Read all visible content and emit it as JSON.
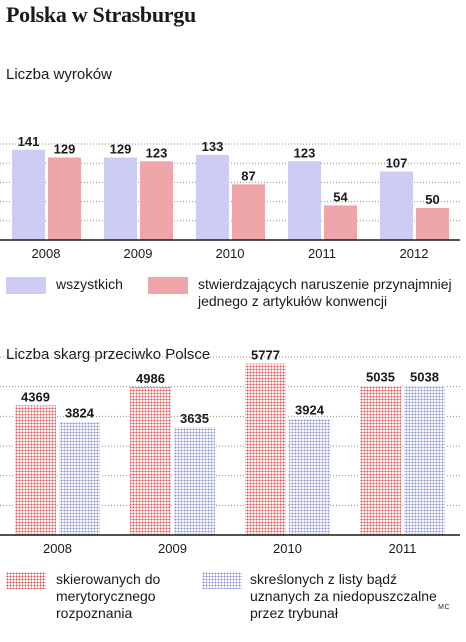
{
  "title": "Polska w Strasburgu",
  "credit": "MC",
  "colors": {
    "all_bars": "#cdcdf4",
    "violation_bars": "#efa6ab",
    "submitted_dots": "#e24b4b",
    "rejected_dots": "#8a8fd6",
    "grid": "#8f8f8f"
  },
  "chart_data": [
    {
      "type": "bar",
      "title": "Liczba wyroków",
      "categories": [
        "2008",
        "2009",
        "2010",
        "2011",
        "2012"
      ],
      "series": [
        {
          "name": "wszystkich",
          "values": [
            141,
            129,
            133,
            123,
            107
          ]
        },
        {
          "name": "stwierdzających naruszenie przynajmniej jednego z artykułów konwencji",
          "values": [
            129,
            123,
            87,
            54,
            50
          ]
        }
      ],
      "ylim": [
        0,
        150
      ],
      "grid": true,
      "legend": "bottom"
    },
    {
      "type": "bar",
      "title": "Liczba skarg przeciwko Polsce",
      "categories": [
        "2008",
        "2009",
        "2010",
        "2011"
      ],
      "series": [
        {
          "name": "skierowanych do merytorycznego rozpoznania",
          "values": [
            4369,
            4986,
            5777,
            5035
          ]
        },
        {
          "name": "skreślonych z listy bądź uznanych za niedopuszczalne przez trybunał",
          "values": [
            3824,
            3635,
            3924,
            5038
          ]
        }
      ],
      "ylim": [
        0,
        6000
      ],
      "grid": true,
      "legend": "bottom"
    }
  ]
}
